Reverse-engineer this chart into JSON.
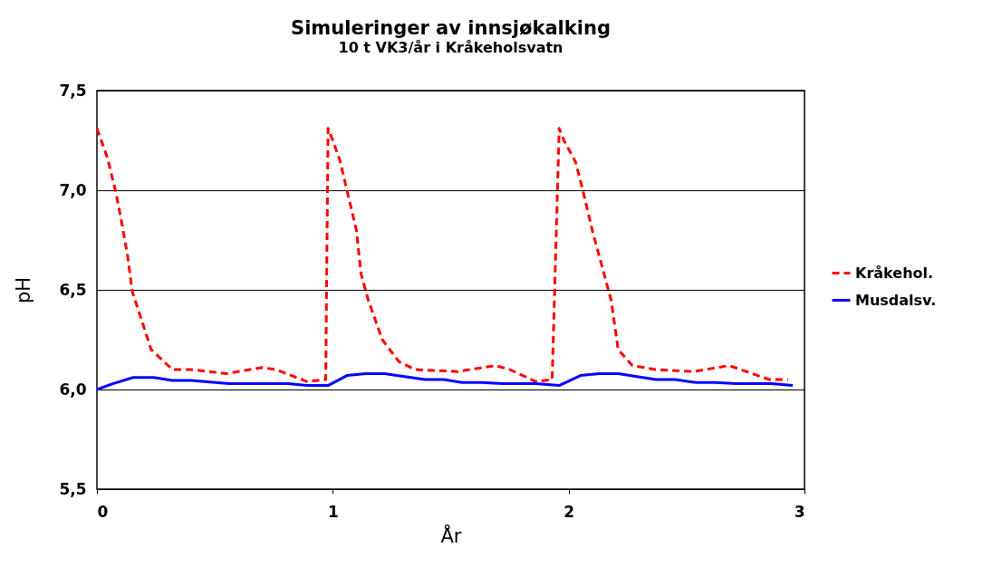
{
  "chart_data": {
    "type": "line",
    "title": "Simuleringer av innsjøkalking",
    "subtitle": "10 t VK3/år i Kråkeholsvatn",
    "xlabel": "År",
    "ylabel": "pH",
    "xlim": [
      0,
      3
    ],
    "xticks": [
      0,
      1,
      2,
      3
    ],
    "ylim": [
      5.5,
      7.5
    ],
    "yticks": [
      {
        "value": 5.5,
        "label": "5,5"
      },
      {
        "value": 6.0,
        "label": "6,0"
      },
      {
        "value": 6.5,
        "label": "6,5"
      },
      {
        "value": 7.0,
        "label": "7,0"
      },
      {
        "value": 7.5,
        "label": "7,5"
      }
    ],
    "grid": "y",
    "legend": "right",
    "marker": "none",
    "series": [
      {
        "name": "Kråkehol.",
        "color": "#ff0000",
        "line_style": "dashed",
        "x": [
          0,
          0.045,
          0.08,
          0.1,
          0.13,
          0.15,
          0.2,
          0.23,
          0.32,
          0.4,
          0.55,
          0.7,
          0.76,
          0.89,
          0.97,
          0.98,
          1.0,
          1.03,
          1.06,
          1.1,
          1.12,
          1.15,
          1.21,
          1.28,
          1.35,
          1.53,
          1.69,
          1.75,
          1.86,
          1.93,
          1.96,
          1.98,
          2.03,
          2.06,
          2.1,
          2.15,
          2.18,
          2.21,
          2.27,
          2.37,
          2.53,
          2.68,
          2.73,
          2.85,
          2.93
        ],
        "values": [
          7.31,
          7.16,
          6.99,
          6.87,
          6.67,
          6.49,
          6.31,
          6.2,
          6.1,
          6.1,
          6.08,
          6.11,
          6.1,
          6.04,
          6.05,
          7.31,
          7.25,
          7.15,
          7.0,
          6.8,
          6.58,
          6.45,
          6.25,
          6.14,
          6.1,
          6.09,
          6.12,
          6.1,
          6.04,
          6.05,
          7.31,
          7.25,
          7.14,
          7.0,
          6.8,
          6.58,
          6.45,
          6.2,
          6.12,
          6.1,
          6.09,
          6.12,
          6.1,
          6.05,
          6.05
        ]
      },
      {
        "name": "Musdalsv.",
        "color": "#0000ff",
        "line_style": "solid",
        "x": [
          0,
          0.07,
          0.154,
          0.24,
          0.32,
          0.4,
          0.56,
          0.81,
          0.89,
          0.98,
          1.06,
          1.14,
          1.22,
          1.39,
          1.47,
          1.55,
          1.63,
          1.72,
          1.86,
          1.96,
          2.05,
          2.13,
          2.21,
          2.37,
          2.45,
          2.54,
          2.62,
          2.71,
          2.86,
          2.95
        ],
        "values": [
          6.0,
          6.03,
          6.06,
          6.06,
          6.045,
          6.045,
          6.03,
          6.03,
          6.02,
          6.02,
          6.07,
          6.08,
          6.08,
          6.05,
          6.05,
          6.035,
          6.035,
          6.03,
          6.03,
          6.02,
          6.07,
          6.08,
          6.08,
          6.05,
          6.05,
          6.035,
          6.035,
          6.03,
          6.03,
          6.02
        ]
      }
    ]
  }
}
